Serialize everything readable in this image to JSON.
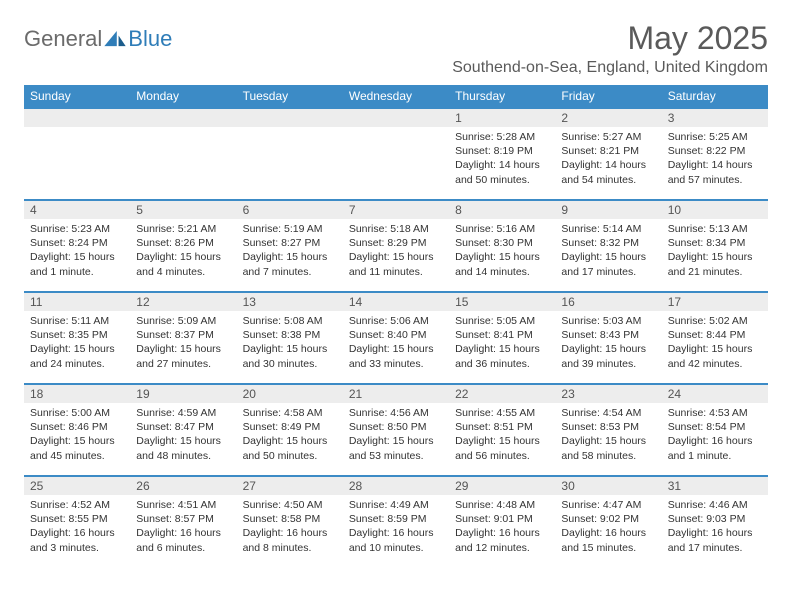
{
  "brand": {
    "part1": "General",
    "part2": "Blue"
  },
  "title": "May 2025",
  "location": "Southend-on-Sea, England, United Kingdom",
  "colors": {
    "header_bg": "#3c8bc6",
    "header_text": "#ffffff",
    "daynum_bg": "#ededed",
    "border": "#3c8bc6",
    "brand_gray": "#6b6b6b",
    "brand_blue": "#2f7db8"
  },
  "day_labels": [
    "Sunday",
    "Monday",
    "Tuesday",
    "Wednesday",
    "Thursday",
    "Friday",
    "Saturday"
  ],
  "weeks": [
    [
      {
        "n": "",
        "sr": "",
        "ss": "",
        "dl": ""
      },
      {
        "n": "",
        "sr": "",
        "ss": "",
        "dl": ""
      },
      {
        "n": "",
        "sr": "",
        "ss": "",
        "dl": ""
      },
      {
        "n": "",
        "sr": "",
        "ss": "",
        "dl": ""
      },
      {
        "n": "1",
        "sr": "Sunrise: 5:28 AM",
        "ss": "Sunset: 8:19 PM",
        "dl": "Daylight: 14 hours and 50 minutes."
      },
      {
        "n": "2",
        "sr": "Sunrise: 5:27 AM",
        "ss": "Sunset: 8:21 PM",
        "dl": "Daylight: 14 hours and 54 minutes."
      },
      {
        "n": "3",
        "sr": "Sunrise: 5:25 AM",
        "ss": "Sunset: 8:22 PM",
        "dl": "Daylight: 14 hours and 57 minutes."
      }
    ],
    [
      {
        "n": "4",
        "sr": "Sunrise: 5:23 AM",
        "ss": "Sunset: 8:24 PM",
        "dl": "Daylight: 15 hours and 1 minute."
      },
      {
        "n": "5",
        "sr": "Sunrise: 5:21 AM",
        "ss": "Sunset: 8:26 PM",
        "dl": "Daylight: 15 hours and 4 minutes."
      },
      {
        "n": "6",
        "sr": "Sunrise: 5:19 AM",
        "ss": "Sunset: 8:27 PM",
        "dl": "Daylight: 15 hours and 7 minutes."
      },
      {
        "n": "7",
        "sr": "Sunrise: 5:18 AM",
        "ss": "Sunset: 8:29 PM",
        "dl": "Daylight: 15 hours and 11 minutes."
      },
      {
        "n": "8",
        "sr": "Sunrise: 5:16 AM",
        "ss": "Sunset: 8:30 PM",
        "dl": "Daylight: 15 hours and 14 minutes."
      },
      {
        "n": "9",
        "sr": "Sunrise: 5:14 AM",
        "ss": "Sunset: 8:32 PM",
        "dl": "Daylight: 15 hours and 17 minutes."
      },
      {
        "n": "10",
        "sr": "Sunrise: 5:13 AM",
        "ss": "Sunset: 8:34 PM",
        "dl": "Daylight: 15 hours and 21 minutes."
      }
    ],
    [
      {
        "n": "11",
        "sr": "Sunrise: 5:11 AM",
        "ss": "Sunset: 8:35 PM",
        "dl": "Daylight: 15 hours and 24 minutes."
      },
      {
        "n": "12",
        "sr": "Sunrise: 5:09 AM",
        "ss": "Sunset: 8:37 PM",
        "dl": "Daylight: 15 hours and 27 minutes."
      },
      {
        "n": "13",
        "sr": "Sunrise: 5:08 AM",
        "ss": "Sunset: 8:38 PM",
        "dl": "Daylight: 15 hours and 30 minutes."
      },
      {
        "n": "14",
        "sr": "Sunrise: 5:06 AM",
        "ss": "Sunset: 8:40 PM",
        "dl": "Daylight: 15 hours and 33 minutes."
      },
      {
        "n": "15",
        "sr": "Sunrise: 5:05 AM",
        "ss": "Sunset: 8:41 PM",
        "dl": "Daylight: 15 hours and 36 minutes."
      },
      {
        "n": "16",
        "sr": "Sunrise: 5:03 AM",
        "ss": "Sunset: 8:43 PM",
        "dl": "Daylight: 15 hours and 39 minutes."
      },
      {
        "n": "17",
        "sr": "Sunrise: 5:02 AM",
        "ss": "Sunset: 8:44 PM",
        "dl": "Daylight: 15 hours and 42 minutes."
      }
    ],
    [
      {
        "n": "18",
        "sr": "Sunrise: 5:00 AM",
        "ss": "Sunset: 8:46 PM",
        "dl": "Daylight: 15 hours and 45 minutes."
      },
      {
        "n": "19",
        "sr": "Sunrise: 4:59 AM",
        "ss": "Sunset: 8:47 PM",
        "dl": "Daylight: 15 hours and 48 minutes."
      },
      {
        "n": "20",
        "sr": "Sunrise: 4:58 AM",
        "ss": "Sunset: 8:49 PM",
        "dl": "Daylight: 15 hours and 50 minutes."
      },
      {
        "n": "21",
        "sr": "Sunrise: 4:56 AM",
        "ss": "Sunset: 8:50 PM",
        "dl": "Daylight: 15 hours and 53 minutes."
      },
      {
        "n": "22",
        "sr": "Sunrise: 4:55 AM",
        "ss": "Sunset: 8:51 PM",
        "dl": "Daylight: 15 hours and 56 minutes."
      },
      {
        "n": "23",
        "sr": "Sunrise: 4:54 AM",
        "ss": "Sunset: 8:53 PM",
        "dl": "Daylight: 15 hours and 58 minutes."
      },
      {
        "n": "24",
        "sr": "Sunrise: 4:53 AM",
        "ss": "Sunset: 8:54 PM",
        "dl": "Daylight: 16 hours and 1 minute."
      }
    ],
    [
      {
        "n": "25",
        "sr": "Sunrise: 4:52 AM",
        "ss": "Sunset: 8:55 PM",
        "dl": "Daylight: 16 hours and 3 minutes."
      },
      {
        "n": "26",
        "sr": "Sunrise: 4:51 AM",
        "ss": "Sunset: 8:57 PM",
        "dl": "Daylight: 16 hours and 6 minutes."
      },
      {
        "n": "27",
        "sr": "Sunrise: 4:50 AM",
        "ss": "Sunset: 8:58 PM",
        "dl": "Daylight: 16 hours and 8 minutes."
      },
      {
        "n": "28",
        "sr": "Sunrise: 4:49 AM",
        "ss": "Sunset: 8:59 PM",
        "dl": "Daylight: 16 hours and 10 minutes."
      },
      {
        "n": "29",
        "sr": "Sunrise: 4:48 AM",
        "ss": "Sunset: 9:01 PM",
        "dl": "Daylight: 16 hours and 12 minutes."
      },
      {
        "n": "30",
        "sr": "Sunrise: 4:47 AM",
        "ss": "Sunset: 9:02 PM",
        "dl": "Daylight: 16 hours and 15 minutes."
      },
      {
        "n": "31",
        "sr": "Sunrise: 4:46 AM",
        "ss": "Sunset: 9:03 PM",
        "dl": "Daylight: 16 hours and 17 minutes."
      }
    ]
  ]
}
